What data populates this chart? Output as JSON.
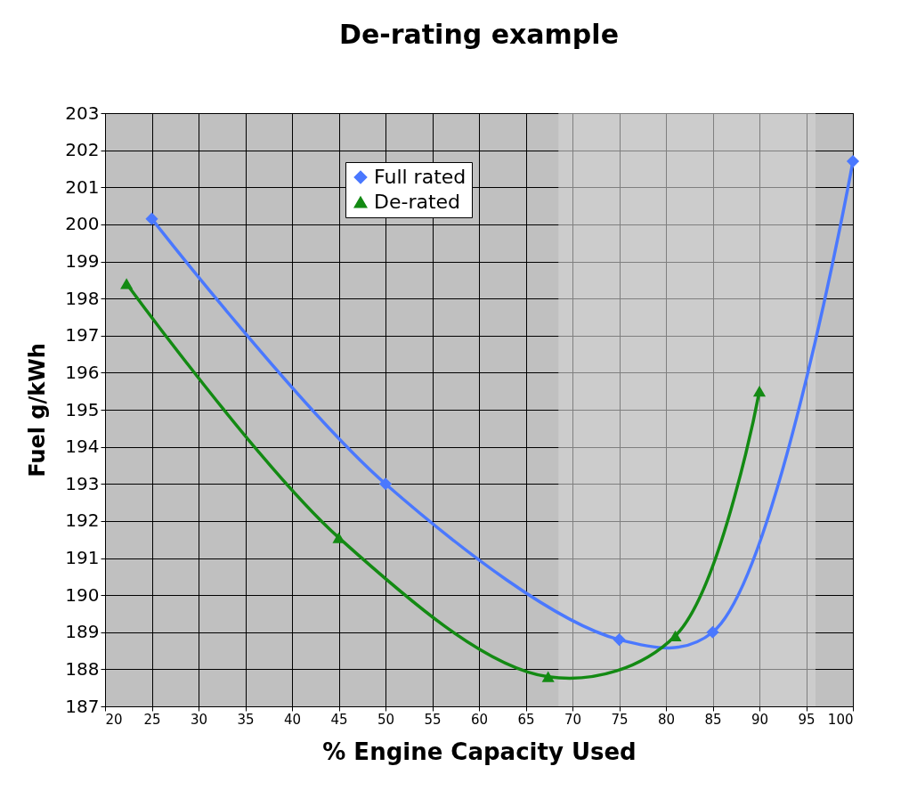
{
  "chart_data": {
    "type": "line",
    "title": "De-rating example",
    "xlabel": "% Engine Capacity Used",
    "ylabel": "Fuel g/kWh",
    "series": [
      {
        "name": "Full rated",
        "color": "#4a78ff",
        "marker": "diamond",
        "x": [
          25,
          50,
          75,
          85,
          100
        ],
        "values": [
          200.15,
          193.0,
          188.8,
          189.0,
          201.7
        ]
      },
      {
        "name": "De-rated",
        "color": "#138a13",
        "marker": "triangle",
        "x": [
          22.3,
          45,
          67.4,
          81,
          90
        ],
        "values": [
          198.4,
          191.55,
          187.8,
          188.9,
          195.5
        ]
      }
    ],
    "xlim": [
      20,
      100
    ],
    "xticks": [
      20,
      25,
      30,
      35,
      40,
      45,
      50,
      55,
      60,
      65,
      70,
      75,
      80,
      85,
      90,
      95,
      100
    ],
    "ylim": [
      187,
      203
    ],
    "yticks": [
      187,
      188,
      189,
      190,
      191,
      192,
      193,
      194,
      195,
      196,
      197,
      198,
      199,
      200,
      201,
      202,
      203
    ],
    "bands": [
      {
        "axis": "x",
        "from": 68.5,
        "to": 96,
        "color": "#d4d4d4"
      }
    ],
    "grid": true,
    "legend": "top",
    "line_style": "solid"
  }
}
